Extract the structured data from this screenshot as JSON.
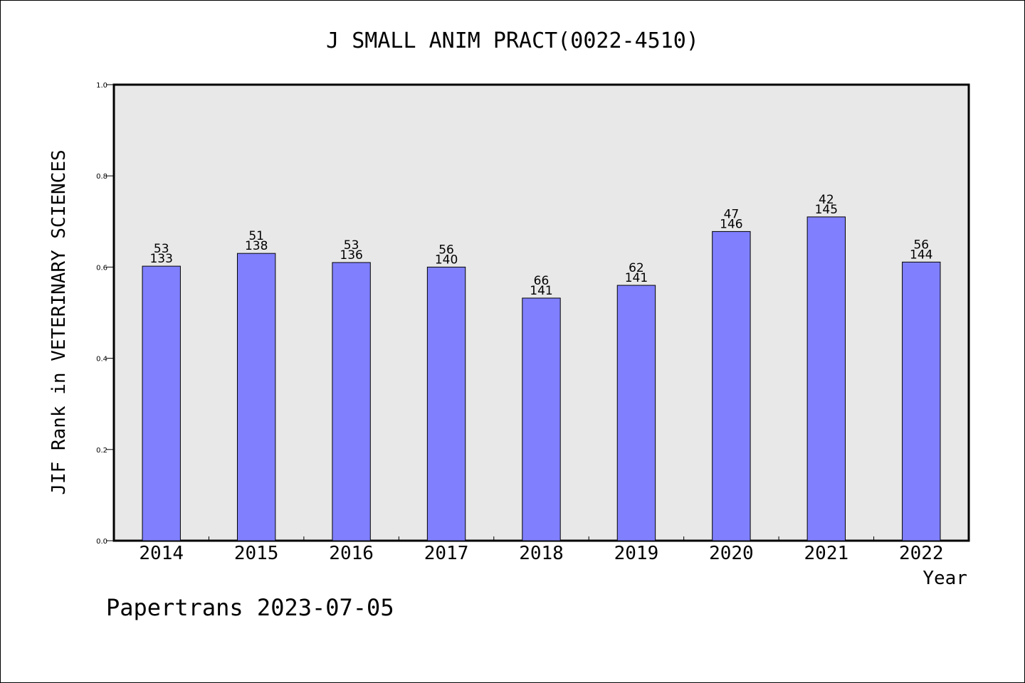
{
  "chart_data": {
    "type": "bar",
    "title": "J SMALL ANIM PRACT(0022-4510)",
    "xlabel": "Year",
    "ylabel": "JIF Rank in VETERINARY SCIENCES",
    "ylim": [
      0,
      1.0
    ],
    "yticks": [
      "0.0",
      "0.2",
      "0.4",
      "0.6",
      "0.8",
      "1.0"
    ],
    "categories": [
      "2014",
      "2015",
      "2016",
      "2017",
      "2018",
      "2019",
      "2020",
      "2021",
      "2022"
    ],
    "values": [
      0.602,
      0.63,
      0.61,
      0.6,
      0.532,
      0.56,
      0.678,
      0.71,
      0.611
    ],
    "rank_labels": [
      "53",
      "51",
      "53",
      "56",
      "66",
      "62",
      "47",
      "42",
      "56"
    ],
    "total_labels": [
      "133",
      "138",
      "136",
      "140",
      "141",
      "141",
      "146",
      "145",
      "144"
    ],
    "grid": false,
    "colors": {
      "bar": "#8080ff",
      "plot_background": "#e8e8e8",
      "axis": "#000000"
    }
  },
  "footer": {
    "credit": "Papertrans 2023-07-05"
  }
}
